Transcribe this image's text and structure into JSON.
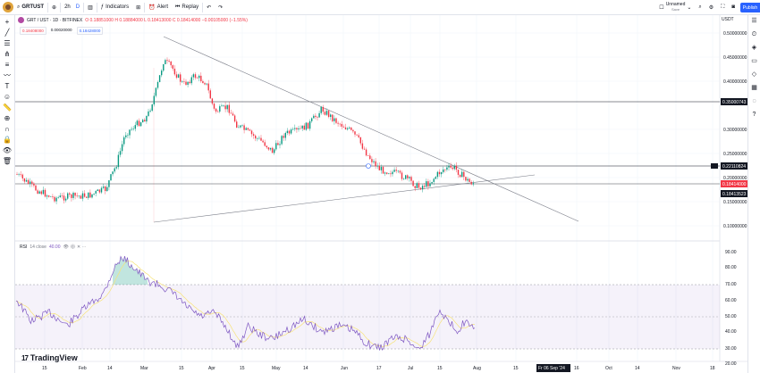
{
  "topbar": {
    "symbol": "GRTUST",
    "interval": "2h",
    "chart_type_label": "D",
    "indicators_label": "Indicators",
    "alert_label": "Alert",
    "replay_label": "Replay",
    "layout_name": "Unnamed",
    "layout_sub": "Save",
    "publish_label": "Publish"
  },
  "legend": {
    "title": "GRT / UST · 1D · BITFINEX",
    "ohlc": "O 0.18851000  H 0.18884000  L 0.18413000  C 0.18414000  −0.00105000 (−1.55%)",
    "sell_price": "0.18408000",
    "spread": "0.00020000",
    "buy_price": "0.18428000"
  },
  "rsi_legend": {
    "name": "RSI",
    "params": "14 close",
    "value": "40.00"
  },
  "currency": "USDT",
  "price_axis": [
    "0.50000000",
    "0.45000000",
    "0.40000000",
    "0.30000000",
    "0.25000000",
    "0.20000000",
    "0.15000000",
    "0.10000000"
  ],
  "price_tags": {
    "upper_line": "0.35000743",
    "mid_line": "0.22110824",
    "last_price": "0.18414000",
    "last_price_2": "0.18413523"
  },
  "rsi_axis": [
    "90.00",
    "80.00",
    "70.00",
    "60.00",
    "50.00",
    "40.00",
    "30.00",
    "20.00"
  ],
  "time_axis": [
    "15",
    "Feb",
    "14",
    "Mar",
    "15",
    "Apr",
    "15",
    "May",
    "14",
    "Jun",
    "17",
    "Jul",
    "15",
    "Aug",
    "15",
    "16",
    "Oct",
    "14",
    "Nov",
    "18"
  ],
  "crosshair_time": "Fr 06 Sep '24",
  "logo_text": "TradingView",
  "colors": {
    "up": "#089981",
    "down": "#f23645",
    "rsi": "#7e57c2",
    "accent": "#2962ff"
  }
}
